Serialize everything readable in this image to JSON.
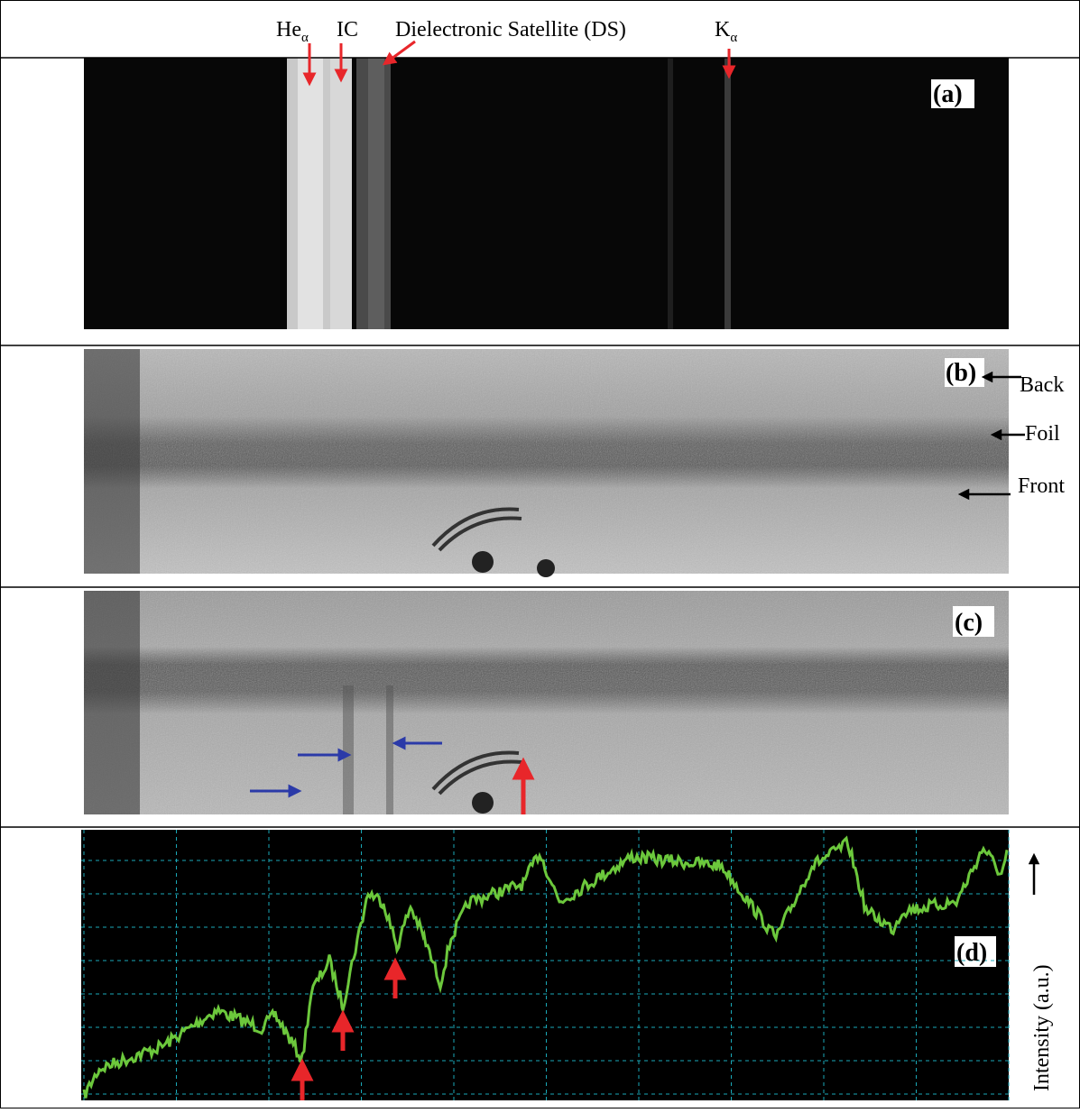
{
  "header": {
    "labels": [
      {
        "text": "He",
        "sub": "α"
      },
      {
        "text": "IC"
      },
      {
        "text": "Dielectronic Satellite (DS)"
      },
      {
        "text": "K",
        "sub": "α"
      }
    ]
  },
  "panels": [
    {
      "label": "(a)"
    },
    {
      "label": "(b)",
      "annotations": [
        "Back",
        "Foil",
        "Front"
      ]
    },
    {
      "label": "(c)"
    },
    {
      "label": "(d)",
      "axis_label": "Intensity (a.u.)"
    }
  ]
}
